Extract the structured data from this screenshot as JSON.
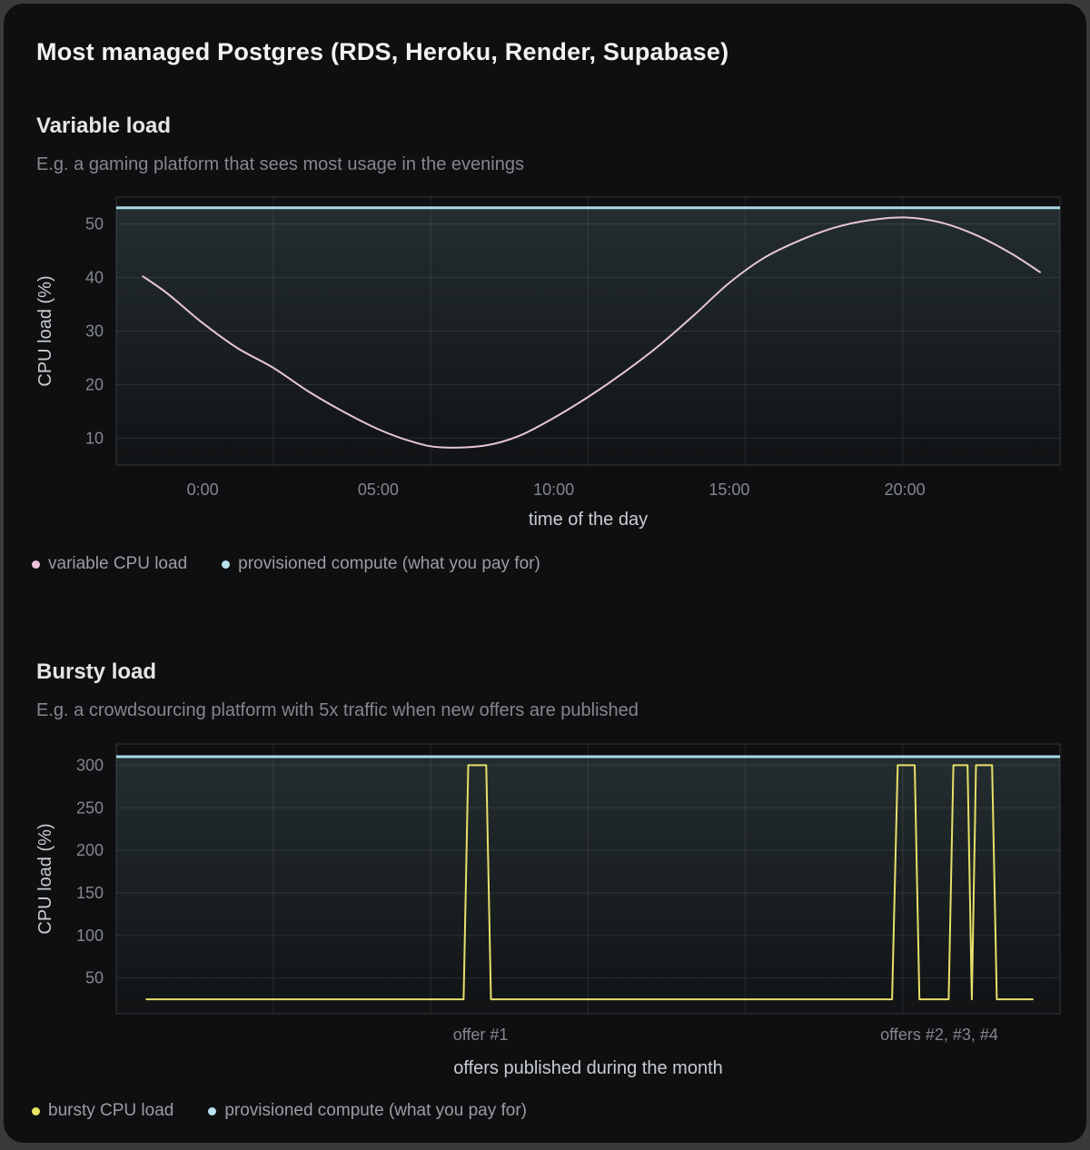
{
  "card": {
    "title": "Most managed Postgres (RDS, Heroku, Render, Supabase)"
  },
  "sections": [
    {
      "heading": "Variable load",
      "subtitle": "E.g. a gaming platform that sees most usage in the evenings",
      "legend": [
        {
          "label": "variable CPU load",
          "color": "#efc0da",
          "icon": "pink-dot-icon"
        },
        {
          "label": "provisioned compute (what you pay for)",
          "color": "#b7e1ee",
          "icon": "blue-dot-icon"
        }
      ]
    },
    {
      "heading": "Bursty load",
      "subtitle": "E.g. a crowdsourcing platform with 5x traffic when new offers are published",
      "legend": [
        {
          "label": "bursty CPU load",
          "color": "#e9e35f",
          "icon": "yellow-dot-icon"
        },
        {
          "label": "provisioned compute (what you pay for)",
          "color": "#b7e1ee",
          "icon": "blue-dot-icon"
        }
      ]
    }
  ],
  "chart_data": [
    {
      "type": "line",
      "title": "Variable load",
      "xlabel": "time of the day",
      "ylabel": "CPU load (%)",
      "x_domain": [
        -2.46,
        24.42
      ],
      "y_domain": [
        5,
        55
      ],
      "x_ticks": [
        {
          "v": 0,
          "label": "0:00"
        },
        {
          "v": 5,
          "label": "05:00"
        },
        {
          "v": 10,
          "label": "10:00"
        },
        {
          "v": 15,
          "label": "15:00"
        },
        {
          "v": 20,
          "label": "20:00"
        }
      ],
      "y_ticks": [
        10,
        20,
        30,
        40,
        50
      ],
      "grid_x_divisions": 6,
      "grid": true,
      "legend_position": "bottom-left",
      "series": [
        {
          "name": "provisioned compute (what you pay for)",
          "kind": "constant",
          "value": 53,
          "color": "#a6d9e6",
          "width": 3,
          "area_fill": true
        },
        {
          "name": "variable CPU load",
          "kind": "curve",
          "smooth": true,
          "color": "#e7c6d9",
          "width": 2,
          "points": [
            [
              -1.7,
              40.2
            ],
            [
              -1,
              37
            ],
            [
              0,
              31.5
            ],
            [
              1,
              26.8
            ],
            [
              2,
              23.2
            ],
            [
              3,
              18.8
            ],
            [
              4,
              15
            ],
            [
              5,
              11.7
            ],
            [
              6,
              9.3
            ],
            [
              6.8,
              8.3
            ],
            [
              8,
              8.6
            ],
            [
              9,
              10.4
            ],
            [
              10,
              13.8
            ],
            [
              11,
              17.8
            ],
            [
              12,
              22.3
            ],
            [
              13,
              27.3
            ],
            [
              14,
              33
            ],
            [
              15,
              39
            ],
            [
              16,
              43.7
            ],
            [
              17,
              46.9
            ],
            [
              18,
              49.3
            ],
            [
              19,
              50.7
            ],
            [
              20,
              51.2
            ],
            [
              21,
              50.3
            ],
            [
              22,
              48
            ],
            [
              23,
              44.6
            ],
            [
              23.85,
              41
            ]
          ]
        }
      ]
    },
    {
      "type": "line",
      "title": "Bursty load",
      "xlabel": "offers published during the month",
      "ylabel": "CPU load (%)",
      "x_domain": [
        0,
        1
      ],
      "y_domain": [
        8,
        325
      ],
      "x_ticks": [
        {
          "v": 0.386,
          "label": "offer #1"
        },
        {
          "v": 0.872,
          "label": "offers #2, #3, #4"
        }
      ],
      "y_ticks": [
        50,
        100,
        150,
        200,
        250,
        300
      ],
      "grid_x_divisions": 6,
      "grid": true,
      "legend_position": "bottom-left",
      "series": [
        {
          "name": "provisioned compute (what you pay for)",
          "kind": "constant",
          "value": 310,
          "color": "#a6d9e6",
          "width": 3,
          "area_fill": true
        },
        {
          "name": "bursty CPU load",
          "kind": "curve",
          "smooth": false,
          "color": "#e6e06a",
          "width": 2,
          "points": [
            [
              0.032,
              25
            ],
            [
              0.368,
              25
            ],
            [
              0.373,
              300
            ],
            [
              0.392,
              300
            ],
            [
              0.397,
              25
            ],
            [
              0.822,
              25
            ],
            [
              0.828,
              300
            ],
            [
              0.846,
              300
            ],
            [
              0.851,
              25
            ],
            [
              0.882,
              25
            ],
            [
              0.887,
              300
            ],
            [
              0.902,
              300
            ],
            [
              0.9065,
              25
            ],
            [
              0.911,
              300
            ],
            [
              0.928,
              300
            ],
            [
              0.933,
              25
            ],
            [
              0.971,
              25
            ]
          ]
        }
      ]
    }
  ]
}
